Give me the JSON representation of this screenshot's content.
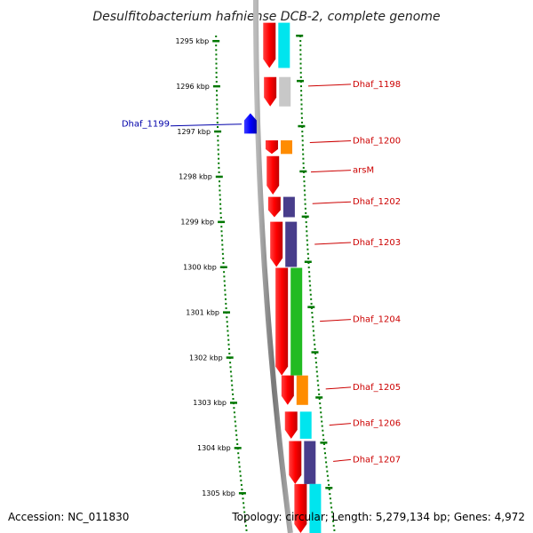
{
  "title": "Desulfitobacterium hafniense DCB-2, complete genome",
  "footer": {
    "accession": "Accession: NC_011830",
    "topology": "Topology: circular; Length: 5,279,134 bp; Genes: 4,972"
  },
  "ticks": [
    {
      "label": "1295 kbp",
      "kbp": 1295
    },
    {
      "label": "1296 kbp",
      "kbp": 1296
    },
    {
      "label": "1297 kbp",
      "kbp": 1297
    },
    {
      "label": "1298 kbp",
      "kbp": 1298
    },
    {
      "label": "1299 kbp",
      "kbp": 1299
    },
    {
      "label": "1300 kbp",
      "kbp": 1300
    },
    {
      "label": "1301 kbp",
      "kbp": 1301
    },
    {
      "label": "1302 kbp",
      "kbp": 1302
    },
    {
      "label": "1303 kbp",
      "kbp": 1303
    },
    {
      "label": "1304 kbp",
      "kbp": 1304
    },
    {
      "label": "1305 kbp",
      "kbp": 1305
    }
  ],
  "colors": {
    "forward": "#ff0000",
    "reverse": "#0000ff",
    "backbone": "#888888",
    "tick": "#007700",
    "label_forward": "#cc0000",
    "label_reverse": "#0000aa",
    "cyan": "#00e5ee",
    "gray": "#c8c8c8",
    "orange": "#ff8c00",
    "purple": "#483d8b",
    "green": "#22bb22"
  },
  "genes": [
    {
      "label": "",
      "strand": "+",
      "start_kbp": 1294.6,
      "end_kbp": 1295.6,
      "cog_color": "#00e5ee"
    },
    {
      "label": "Dhaf_1198",
      "strand": "+",
      "start_kbp": 1295.8,
      "end_kbp": 1296.45,
      "cog_color": "#c8c8c8"
    },
    {
      "label": "Dhaf_1199",
      "strand": "-",
      "start_kbp": 1296.6,
      "end_kbp": 1297.05,
      "cog_color": ""
    },
    {
      "label": "Dhaf_1200",
      "strand": "+",
      "start_kbp": 1297.2,
      "end_kbp": 1297.5,
      "cog_color": "#ff8c00"
    },
    {
      "label": "arsM",
      "strand": "+",
      "start_kbp": 1297.55,
      "end_kbp": 1298.4,
      "cog_color": ""
    },
    {
      "label": "Dhaf_1202",
      "strand": "+",
      "start_kbp": 1298.45,
      "end_kbp": 1298.9,
      "cog_color": "#483d8b"
    },
    {
      "label": "Dhaf_1203",
      "strand": "+",
      "start_kbp": 1299.0,
      "end_kbp": 1300.0,
      "cog_color": "#483d8b"
    },
    {
      "label": "Dhaf_1204",
      "strand": "+",
      "start_kbp": 1300.02,
      "end_kbp": 1302.4,
      "cog_color": "#22bb22"
    },
    {
      "label": "Dhaf_1205",
      "strand": "+",
      "start_kbp": 1302.4,
      "end_kbp": 1303.05,
      "cog_color": "#ff8c00"
    },
    {
      "label": "Dhaf_1206",
      "strand": "+",
      "start_kbp": 1303.2,
      "end_kbp": 1303.8,
      "cog_color": "#00e5ee"
    },
    {
      "label": "Dhaf_1207",
      "strand": "+",
      "start_kbp": 1303.85,
      "end_kbp": 1304.8,
      "cog_color": "#483d8b"
    },
    {
      "label": "",
      "strand": "+",
      "start_kbp": 1304.8,
      "end_kbp": 1305.9,
      "cog_color": "#00e5ee"
    }
  ],
  "gene_label_anchor_kbp": {
    "Dhaf_1198": 1296.0,
    "Dhaf_1199": 1296.9,
    "Dhaf_1200": 1297.25,
    "arsM": 1297.9,
    "Dhaf_1202": 1298.6,
    "Dhaf_1203": 1299.5,
    "Dhaf_1204": 1301.2,
    "Dhaf_1205": 1302.7,
    "Dhaf_1206": 1303.5,
    "Dhaf_1207": 1304.3
  }
}
